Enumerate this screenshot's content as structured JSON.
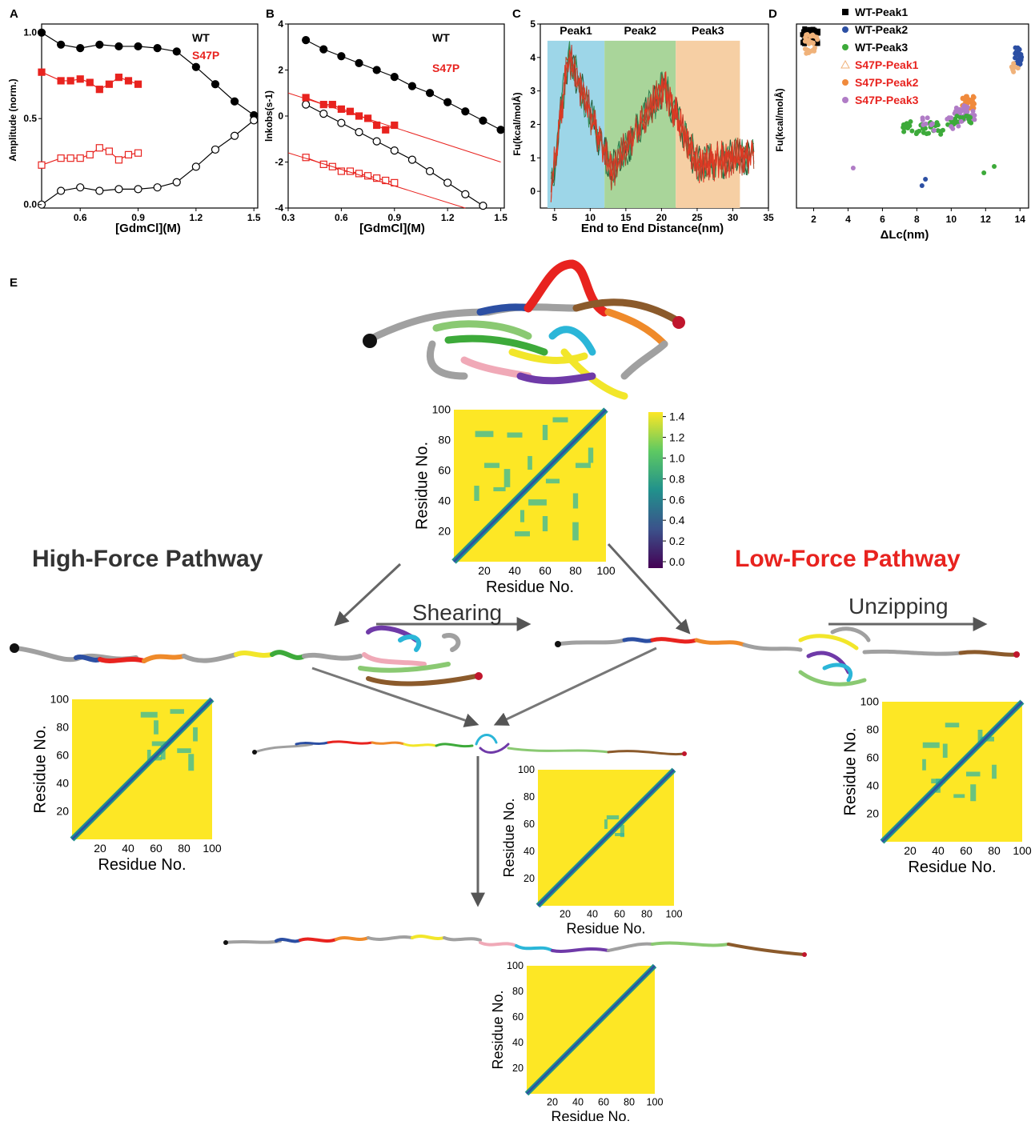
{
  "panels": {
    "A": {
      "label": "A",
      "xlabel": "[GdmCl](M)",
      "ylabel": "Amplitude (norm.)",
      "xticks": [
        "0.6",
        "0.9",
        "1.2",
        "1.5"
      ],
      "yticks": [
        "0.0",
        "0.5",
        "1.0"
      ],
      "legend": [
        "WT",
        "S47P"
      ]
    },
    "B": {
      "label": "B",
      "xlabel": "[GdmCl](M)",
      "ylabel": "lnkobs(s-1)",
      "xticks": [
        "0.3",
        "0.6",
        "0.9",
        "1.2",
        "1.5"
      ],
      "yticks": [
        "-4",
        "-2",
        "0",
        "2",
        "4"
      ],
      "legend": [
        "WT",
        "S47P"
      ]
    },
    "C": {
      "label": "C",
      "xlabel": "End to End Distance(nm)",
      "ylabel": "Fu(kcal/molÅ)",
      "xticks": [
        "5",
        "10",
        "15",
        "20",
        "25",
        "30",
        "35"
      ],
      "yticks": [
        "0",
        "1",
        "2",
        "3",
        "4",
        "5"
      ],
      "peaks": [
        "Peak1",
        "Peak2",
        "Peak3"
      ]
    },
    "D": {
      "label": "D",
      "xlabel": "ΔLc(nm)",
      "ylabel": "Fu(kcal/molÅ)",
      "xticks": [
        "2",
        "4",
        "6",
        "8",
        "10",
        "12",
        "14"
      ],
      "legend": [
        "WT-Peak1",
        "WT-Peak2",
        "WT-Peak3",
        "S47P-Peak1",
        "S47P-Peak2",
        "S47P-Peak3"
      ]
    },
    "E": {
      "label": "E",
      "high_force": "High-Force Pathway",
      "low_force": "Low-Force Pathway",
      "shearing": "Shearing",
      "unzipping": "Unzipping",
      "map_axis": "Residue No.",
      "map_ticks": [
        "20",
        "40",
        "60",
        "80",
        "100"
      ],
      "colorbar_ticks": [
        "0.0",
        "0.2",
        "0.4",
        "0.6",
        "0.8",
        "1.0",
        "1.2",
        "1.4"
      ]
    }
  },
  "chart_data": [
    {
      "type": "scatter",
      "panel": "A",
      "xlabel": "[GdmCl](M)",
      "ylabel": "Amplitude (norm.)",
      "xlim": [
        0.4,
        1.52
      ],
      "ylim": [
        -0.02,
        1.05
      ],
      "series": [
        {
          "name": "WT",
          "marker": "filled-circle",
          "color": "#000000",
          "x": [
            0.4,
            0.5,
            0.6,
            0.7,
            0.8,
            0.9,
            1.0,
            1.1,
            1.2,
            1.3,
            1.4,
            1.5
          ],
          "y": [
            1.0,
            0.93,
            0.91,
            0.93,
            0.92,
            0.92,
            0.91,
            0.89,
            0.8,
            0.7,
            0.6,
            0.52
          ]
        },
        {
          "name": "WT",
          "marker": "open-circle",
          "color": "#000000",
          "x": [
            0.4,
            0.5,
            0.6,
            0.7,
            0.8,
            0.9,
            1.0,
            1.1,
            1.2,
            1.3,
            1.4,
            1.5
          ],
          "y": [
            0.0,
            0.08,
            0.1,
            0.08,
            0.09,
            0.09,
            0.1,
            0.13,
            0.22,
            0.32,
            0.4,
            0.49
          ]
        },
        {
          "name": "S47P",
          "marker": "filled-square",
          "color": "#e8231f",
          "x": [
            0.4,
            0.5,
            0.55,
            0.6,
            0.65,
            0.7,
            0.75,
            0.8,
            0.85,
            0.9
          ],
          "y": [
            0.77,
            0.72,
            0.72,
            0.73,
            0.71,
            0.67,
            0.7,
            0.74,
            0.72,
            0.7
          ]
        },
        {
          "name": "S47P",
          "marker": "open-square",
          "color": "#e8231f",
          "x": [
            0.4,
            0.5,
            0.55,
            0.6,
            0.65,
            0.7,
            0.75,
            0.8,
            0.85,
            0.9
          ],
          "y": [
            0.23,
            0.27,
            0.27,
            0.27,
            0.29,
            0.33,
            0.31,
            0.26,
            0.29,
            0.3
          ]
        }
      ]
    },
    {
      "type": "scatter",
      "panel": "B",
      "xlabel": "[GdmCl](M)",
      "ylabel": "lnkobs(s-1)",
      "xlim": [
        0.3,
        1.52
      ],
      "ylim": [
        -4,
        4
      ],
      "series": [
        {
          "name": "WT",
          "marker": "filled-circle",
          "color": "#000000",
          "x": [
            0.4,
            0.5,
            0.6,
            0.7,
            0.8,
            0.9,
            1.0,
            1.1,
            1.2,
            1.3,
            1.4,
            1.5
          ],
          "y": [
            3.3,
            2.9,
            2.6,
            2.3,
            2.0,
            1.7,
            1.3,
            1.0,
            0.6,
            0.2,
            -0.2,
            -0.6
          ]
        },
        {
          "name": "WT",
          "marker": "open-circle",
          "color": "#000000",
          "x": [
            0.4,
            0.5,
            0.6,
            0.7,
            0.8,
            0.9,
            1.0,
            1.1,
            1.2,
            1.3,
            1.4
          ],
          "y": [
            0.5,
            0.1,
            -0.3,
            -0.7,
            -1.1,
            -1.5,
            -1.9,
            -2.4,
            -2.9,
            -3.4,
            -3.9
          ]
        },
        {
          "name": "S47P",
          "marker": "filled-square",
          "color": "#e8231f",
          "x": [
            0.4,
            0.5,
            0.55,
            0.6,
            0.65,
            0.7,
            0.75,
            0.8,
            0.85,
            0.9
          ],
          "y": [
            0.8,
            0.5,
            0.5,
            0.3,
            0.2,
            0.0,
            -0.1,
            -0.4,
            -0.6,
            -0.4
          ]
        },
        {
          "name": "S47P",
          "marker": "open-square",
          "color": "#e8231f",
          "x": [
            0.4,
            0.5,
            0.55,
            0.6,
            0.65,
            0.7,
            0.75,
            0.8,
            0.85,
            0.9
          ],
          "y": [
            -1.8,
            -2.1,
            -2.2,
            -2.4,
            -2.4,
            -2.5,
            -2.6,
            -2.7,
            -2.8,
            -2.9
          ]
        }
      ]
    },
    {
      "type": "line",
      "panel": "C",
      "xlabel": "End to End Distance(nm)",
      "ylabel": "Fu(kcal/molÅ)",
      "xlim": [
        3,
        35
      ],
      "ylim": [
        -0.5,
        5
      ],
      "regions": [
        {
          "name": "Peak1",
          "x": [
            4,
            12
          ],
          "color": "#9dd6e8"
        },
        {
          "name": "Peak2",
          "x": [
            12,
            22
          ],
          "color": "#a9d59a"
        },
        {
          "name": "Peak3",
          "x": [
            22,
            31
          ],
          "color": "#f6cfa4"
        }
      ]
    },
    {
      "type": "scatter",
      "panel": "D",
      "xlabel": "ΔLc(nm)",
      "ylabel": "Fu(kcal/molÅ)",
      "xlim": [
        1,
        14.5
      ],
      "series": [
        {
          "name": "WT-Peak1",
          "color": "#000000"
        },
        {
          "name": "WT-Peak2",
          "color": "#2c4fa3"
        },
        {
          "name": "WT-Peak3",
          "color": "#3daa3a"
        },
        {
          "name": "S47P-Peak1",
          "color": "#f0b27a"
        },
        {
          "name": "S47P-Peak2",
          "color": "#f08a3c"
        },
        {
          "name": "S47P-Peak3",
          "color": "#b07cc6"
        }
      ]
    }
  ]
}
